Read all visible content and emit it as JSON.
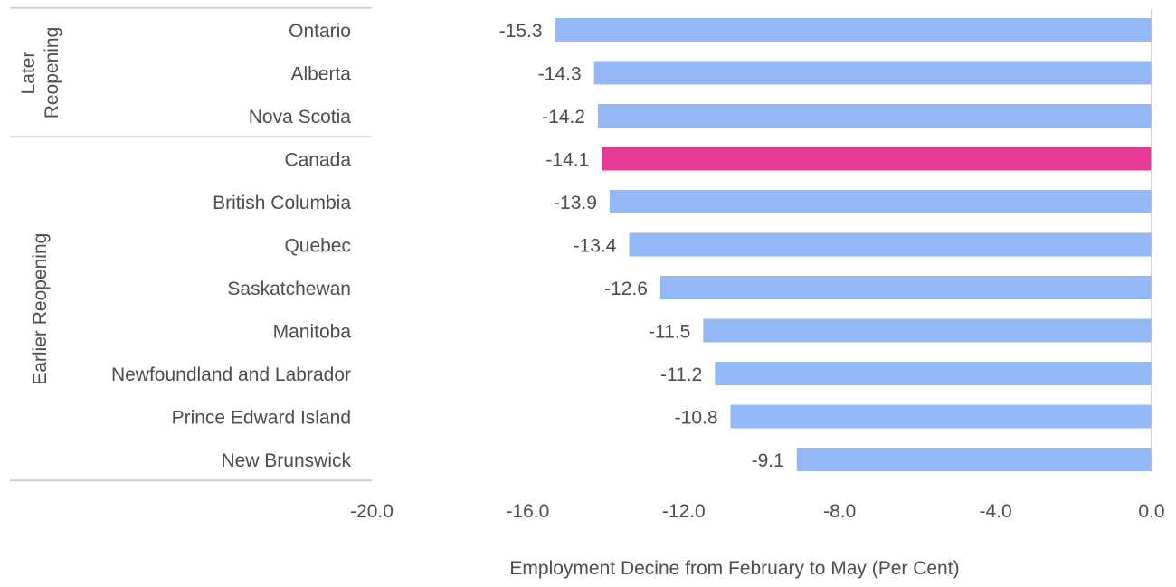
{
  "chart_data": {
    "type": "bar",
    "orientation": "horizontal",
    "xlabel": "Employment Decine from February to May (Per Cent)",
    "ylabel": "",
    "xlim": [
      -20,
      0
    ],
    "x_ticks": [
      "-20.0",
      "-16.0",
      "-12.0",
      "-8.0",
      "-4.0",
      "0.0"
    ],
    "x_tick_values": [
      -20,
      -16,
      -12,
      -8,
      -4,
      0
    ],
    "grid": false,
    "categories": [
      "Ontario",
      "Alberta",
      "Nova Scotia",
      "Canada",
      "British Columbia",
      "Quebec",
      "Saskatchewan",
      "Manitoba",
      "Newfoundland and Labrador",
      "Prince Edward Island",
      "New Brunswick"
    ],
    "values": [
      -15.3,
      -14.3,
      -14.2,
      -14.1,
      -13.9,
      -13.4,
      -12.6,
      -11.5,
      -11.2,
      -10.8,
      -9.1
    ],
    "value_labels": [
      "-15.3",
      "-14.3",
      "-14.2",
      "-14.1",
      "-13.9",
      "-13.4",
      "-12.6",
      "-11.5",
      "-11.2",
      "-10.8",
      "-9.1"
    ],
    "highlight": [
      "Canada"
    ],
    "groups": [
      {
        "label_lines": [
          "Later",
          "Reopening"
        ],
        "categories": [
          "Ontario",
          "Alberta",
          "Nova Scotia"
        ]
      },
      {
        "label_lines": [
          "Earlier Reopening"
        ],
        "categories": [
          "Canada",
          "British Columbia",
          "Quebec",
          "Saskatchewan",
          "Manitoba",
          "Newfoundland and Labrador",
          "Prince Edward Island",
          "New Brunswick"
        ]
      }
    ],
    "colors": {
      "bar": "#93b8f5",
      "highlight": "#e63a96",
      "text": "#4d4d4d",
      "divider": "#cfcfcf",
      "zero_line": "#c8c8c8"
    }
  }
}
